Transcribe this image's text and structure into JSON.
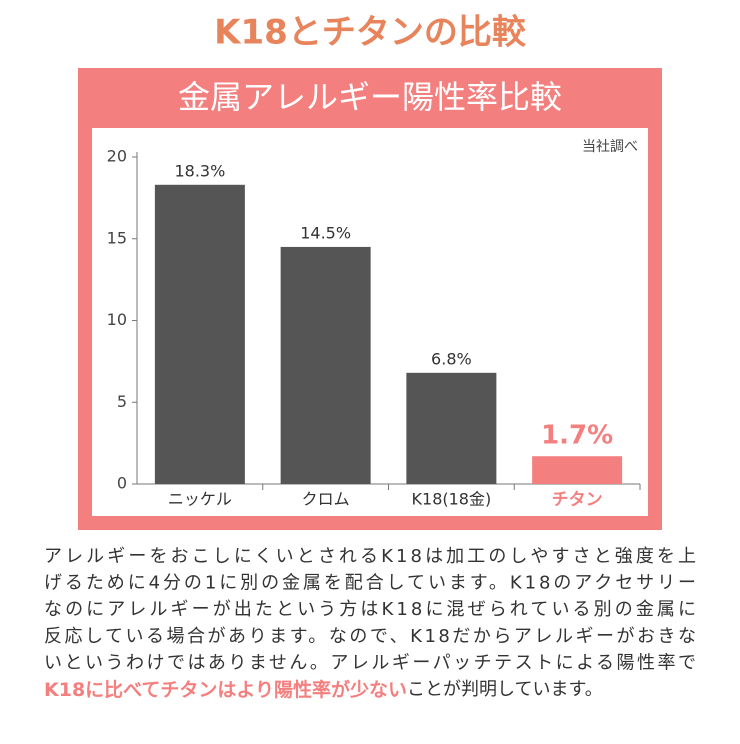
{
  "header": {
    "title": "K18とチタンの比較"
  },
  "chart_data": {
    "type": "bar",
    "title": "金属アレルギー陽性率比較",
    "note": "当社調べ",
    "categories": [
      "ニッケル",
      "クロム",
      "K18(18金)",
      "チタン"
    ],
    "values": [
      18.3,
      14.5,
      6.8,
      1.7
    ],
    "value_labels": [
      "18.3%",
      "14.5%",
      "6.8%",
      "1.7%"
    ],
    "colors": [
      "#555555",
      "#555555",
      "#555555",
      "#f47f7f"
    ],
    "ylim": [
      0,
      20
    ],
    "yticks": [
      0,
      5,
      10,
      15,
      20
    ]
  },
  "paragraph": {
    "lines": [
      "アレルギーをおこしにくいとされるK18は加工のしやすさと強度を上",
      "げるために4分の1に別の金属を配合しています。K18のアクセサリー",
      "なのにアレルギーが出たという方はK18に混ぜられている別の金属に",
      "反応している場合があります。なので、K18だからアレルギーがおきな",
      "いというわけではありません。アレルギーパッチテストによる陽性率で"
    ],
    "highlight": "K18に比べてチタンはより陽性率が少ない",
    "tail": "ことが判明しています。"
  }
}
